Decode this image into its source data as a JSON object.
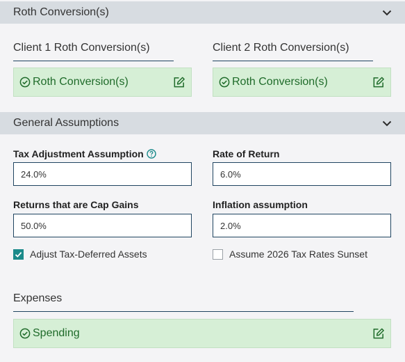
{
  "roth_section": {
    "title": "Roth Conversion(s)",
    "client1": {
      "heading": "Client 1 Roth Conversion(s)",
      "card_label": "Roth Conversion(s)"
    },
    "client2": {
      "heading": "Client 2 Roth Conversion(s)",
      "card_label": "Roth Conversion(s)"
    }
  },
  "general_section": {
    "title": "General Assumptions",
    "fields": {
      "tax_adjustment": {
        "label": "Tax Adjustment Assumption",
        "value": "24.0%"
      },
      "rate_of_return": {
        "label": "Rate of Return",
        "value": "6.0%"
      },
      "cap_gains": {
        "label": "Returns that are Cap Gains",
        "value": "50.0%"
      },
      "inflation": {
        "label": "Inflation assumption",
        "value": "2.0%"
      }
    },
    "checkboxes": {
      "adjust_tax_deferred": {
        "label": "Adjust Tax-Deferred Assets",
        "checked": true
      },
      "assume_2026_sunset": {
        "label": "Assume 2026 Tax Rates Sunset",
        "checked": false
      }
    },
    "expenses": {
      "heading": "Expenses",
      "card_label": "Spending"
    }
  },
  "colors": {
    "header_bg": "#d7dce1",
    "card_bg": "#d6efd6",
    "card_text": "#1f6b2a",
    "accent": "#1b8a8a",
    "rule": "#1f4460"
  }
}
